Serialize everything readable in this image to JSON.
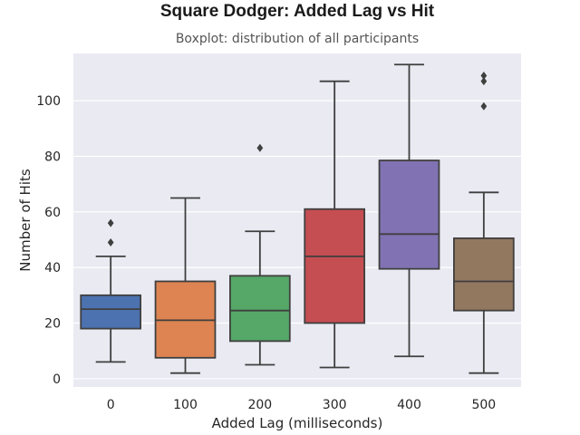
{
  "title": "Square Dodger: Added Lag vs Hit",
  "subtitle": "Boxplot: distribution of all participants",
  "chart_data": {
    "type": "boxplot",
    "xlabel": "Added Lag (milliseconds)",
    "ylabel": "Number of Hits",
    "categories": [
      "0",
      "100",
      "200",
      "300",
      "400",
      "500"
    ],
    "yticks": [
      "0",
      "20",
      "40",
      "60",
      "80",
      "100"
    ],
    "ylim": [
      -3,
      117
    ],
    "grid": true,
    "legend": "none",
    "boxes": [
      {
        "category": "0",
        "whisker_low": 6,
        "q1": 18,
        "median": 25,
        "q3": 30,
        "whisker_high": 44,
        "outliers": [
          49,
          56
        ],
        "color": "#4c72b0"
      },
      {
        "category": "100",
        "whisker_low": 2,
        "q1": 7.5,
        "median": 21,
        "q3": 35,
        "whisker_high": 65,
        "outliers": [],
        "color": "#dd8452"
      },
      {
        "category": "200",
        "whisker_low": 5,
        "q1": 13.5,
        "median": 24.5,
        "q3": 37,
        "whisker_high": 53,
        "outliers": [
          83
        ],
        "color": "#55a868"
      },
      {
        "category": "300",
        "whisker_low": 4,
        "q1": 20,
        "median": 44,
        "q3": 61,
        "whisker_high": 107,
        "outliers": [],
        "color": "#c44e52"
      },
      {
        "category": "400",
        "whisker_low": 8,
        "q1": 39.5,
        "median": 52,
        "q3": 78.5,
        "whisker_high": 113,
        "outliers": [],
        "color": "#8172b3"
      },
      {
        "category": "500",
        "whisker_low": 2,
        "q1": 24.5,
        "median": 35,
        "q3": 50.5,
        "whisker_high": 67,
        "outliers": [
          98,
          107,
          109
        ],
        "color": "#937860"
      }
    ],
    "colors": {
      "plot_background": "#eaeaf2",
      "grid": "#ffffff",
      "line": "#3f3f3f"
    }
  }
}
